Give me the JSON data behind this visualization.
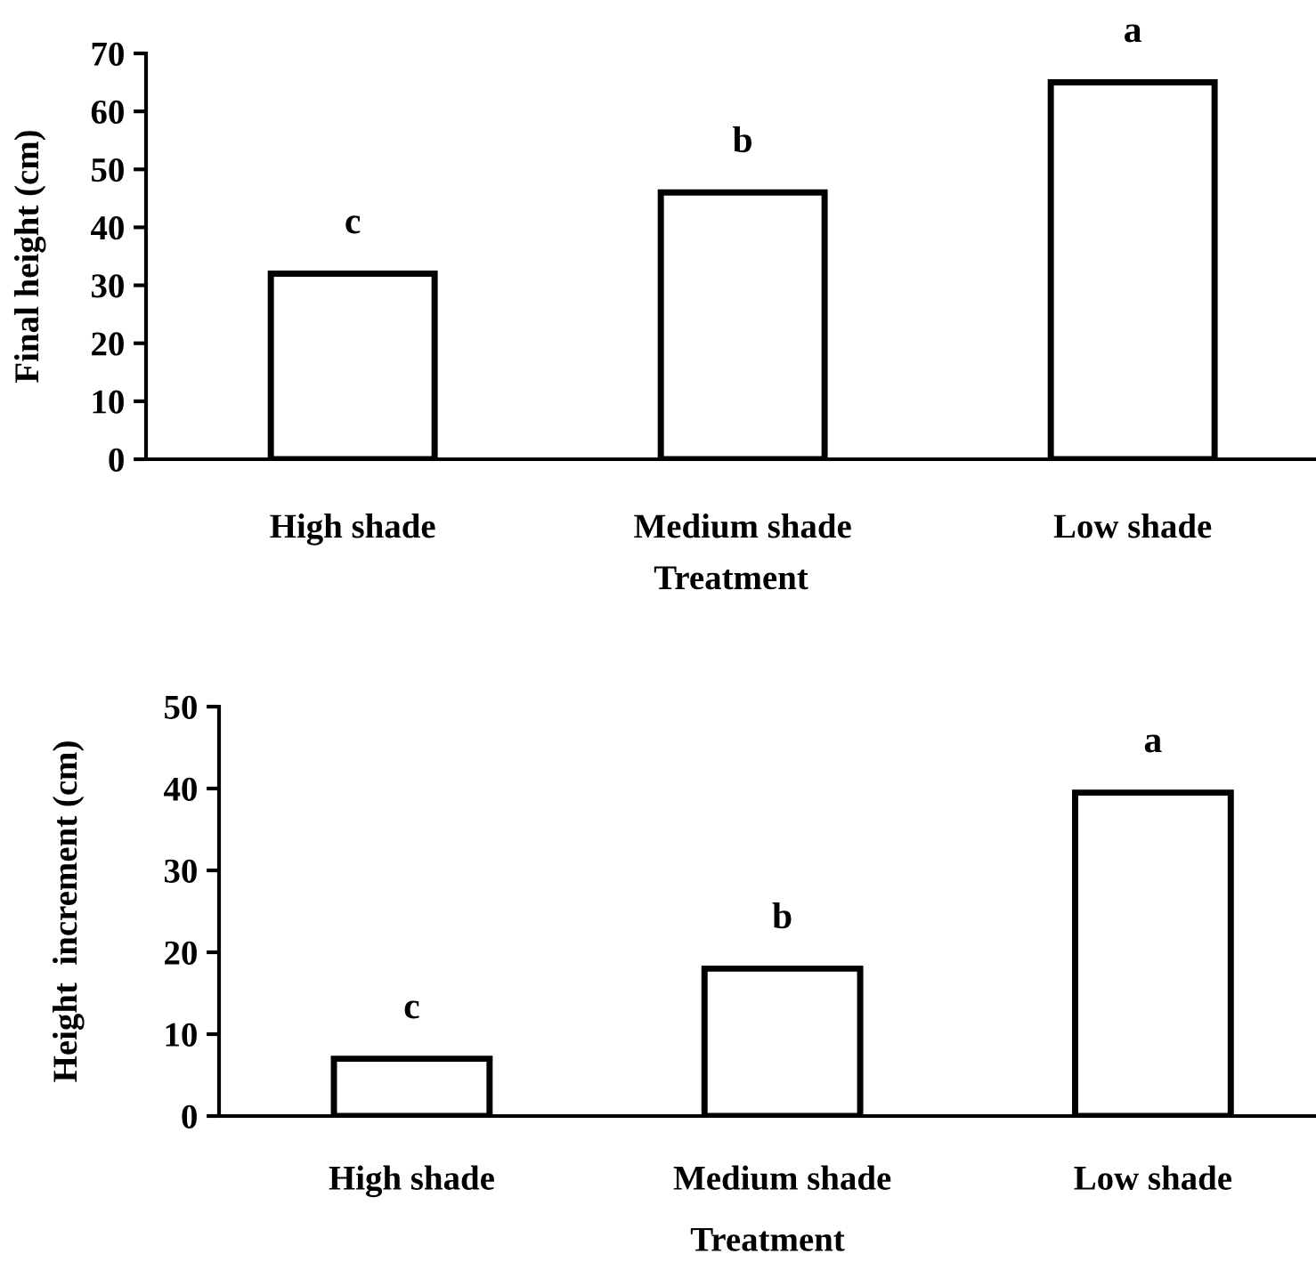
{
  "chart_data": [
    {
      "type": "bar",
      "xlabel": "Treatment",
      "ylabel": "Final height (cm)",
      "categories": [
        "High shade",
        "Medium shade",
        "Low shade"
      ],
      "values": [
        32,
        46,
        65
      ],
      "color": "#ffffff",
      "ylim": [
        0,
        70
      ],
      "yticks": [
        0,
        10,
        20,
        30,
        40,
        50,
        60,
        70
      ],
      "grid": false,
      "legend": false,
      "annotations": [
        "c",
        "b",
        "a"
      ]
    },
    {
      "type": "bar",
      "xlabel": "Treatment",
      "ylabel": "Height  increment (cm)",
      "categories": [
        "High shade",
        "Medium shade",
        "Low shade"
      ],
      "values": [
        7,
        18,
        39.5
      ],
      "color": "#ffffff",
      "ylim": [
        0,
        50
      ],
      "yticks": [
        0,
        10,
        20,
        30,
        40,
        50
      ],
      "grid": false,
      "legend": false,
      "annotations": [
        "c",
        "b",
        "a"
      ]
    }
  ]
}
